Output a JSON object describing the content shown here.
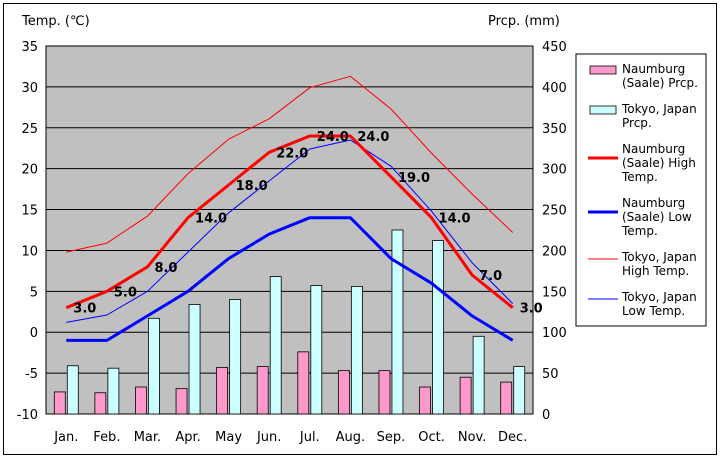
{
  "chart_data": {
    "type": "bar+line",
    "title": "",
    "ylabel_left": "Temp. (℃)",
    "ylabel_right": "Prcp. (mm)",
    "ylim_left": [
      -10,
      35
    ],
    "ylim_right": [
      0,
      450
    ],
    "yticks_left": [
      "35",
      "30",
      "25",
      "20",
      "15",
      "10",
      "5",
      "0",
      "-5",
      "-10"
    ],
    "yticks_right": [
      "450",
      "400",
      "350",
      "300",
      "250",
      "200",
      "150",
      "100",
      "50",
      "0"
    ],
    "grid": "horizontal",
    "legend_position": "right",
    "categories": [
      "Jan.",
      "Feb.",
      "Mar.",
      "Apr.",
      "May",
      "Jun.",
      "Jul.",
      "Aug.",
      "Sep.",
      "Oct.",
      "Nov.",
      "Dec."
    ],
    "bar_series": [
      {
        "name": "Naumburg (Saale) Prcp.",
        "legend_lines": [
          "Naumburg",
          "(Saale) Prcp."
        ],
        "color": "#ff99cc",
        "values": [
          27,
          26,
          33,
          31,
          57,
          58,
          76,
          53,
          53,
          33,
          45,
          39
        ]
      },
      {
        "name": "Tokyo, Japan Prcp.",
        "legend_lines": [
          "Tokyo, Japan",
          "Prcp."
        ],
        "color": "#ccffff",
        "values": [
          59,
          56,
          117,
          134,
          140,
          168,
          157,
          156,
          225,
          212,
          95,
          58
        ]
      }
    ],
    "line_series": [
      {
        "name": "Naumburg (Saale) High Temp.",
        "legend_lines": [
          "Naumburg",
          "(Saale) High",
          "Temp."
        ],
        "color": "#ff0000",
        "width": 3,
        "values": [
          3.0,
          5.0,
          8.0,
          14.0,
          18.0,
          22.0,
          24.0,
          24.0,
          19.0,
          14.0,
          7.0,
          3.0
        ]
      },
      {
        "name": "Naumburg (Saale) Low Temp.",
        "legend_lines": [
          "Naumburg",
          "(Saale) Low",
          "Temp."
        ],
        "color": "#0000ff",
        "width": 3,
        "values": [
          -1.0,
          -1.0,
          2.0,
          5.0,
          9.0,
          12.0,
          14.0,
          14.0,
          9.0,
          6.0,
          2.0,
          -1.0
        ]
      },
      {
        "name": "Tokyo, Japan High Temp.",
        "legend_lines": [
          "Tokyo, Japan",
          "High Temp."
        ],
        "color": "#ff0000",
        "width": 1,
        "values": [
          9.8,
          10.9,
          14.2,
          19.4,
          23.6,
          26.1,
          29.9,
          31.3,
          27.3,
          21.9,
          16.9,
          12.2
        ]
      },
      {
        "name": "Tokyo, Japan Low Temp.",
        "legend_lines": [
          "Tokyo, Japan",
          "Low Temp."
        ],
        "color": "#0000ff",
        "width": 1,
        "values": [
          1.2,
          2.1,
          5.0,
          9.8,
          14.6,
          18.5,
          22.4,
          23.5,
          20.3,
          14.8,
          8.5,
          3.5
        ]
      }
    ],
    "data_labels": {
      "series": "Naumburg (Saale) High Temp.",
      "values": [
        "3.0",
        "5.0",
        "8.0",
        "14.0",
        "18.0",
        "22.0",
        "24.0",
        "24.0",
        "19.0",
        "14.0",
        "7.0",
        "3.0"
      ]
    }
  }
}
